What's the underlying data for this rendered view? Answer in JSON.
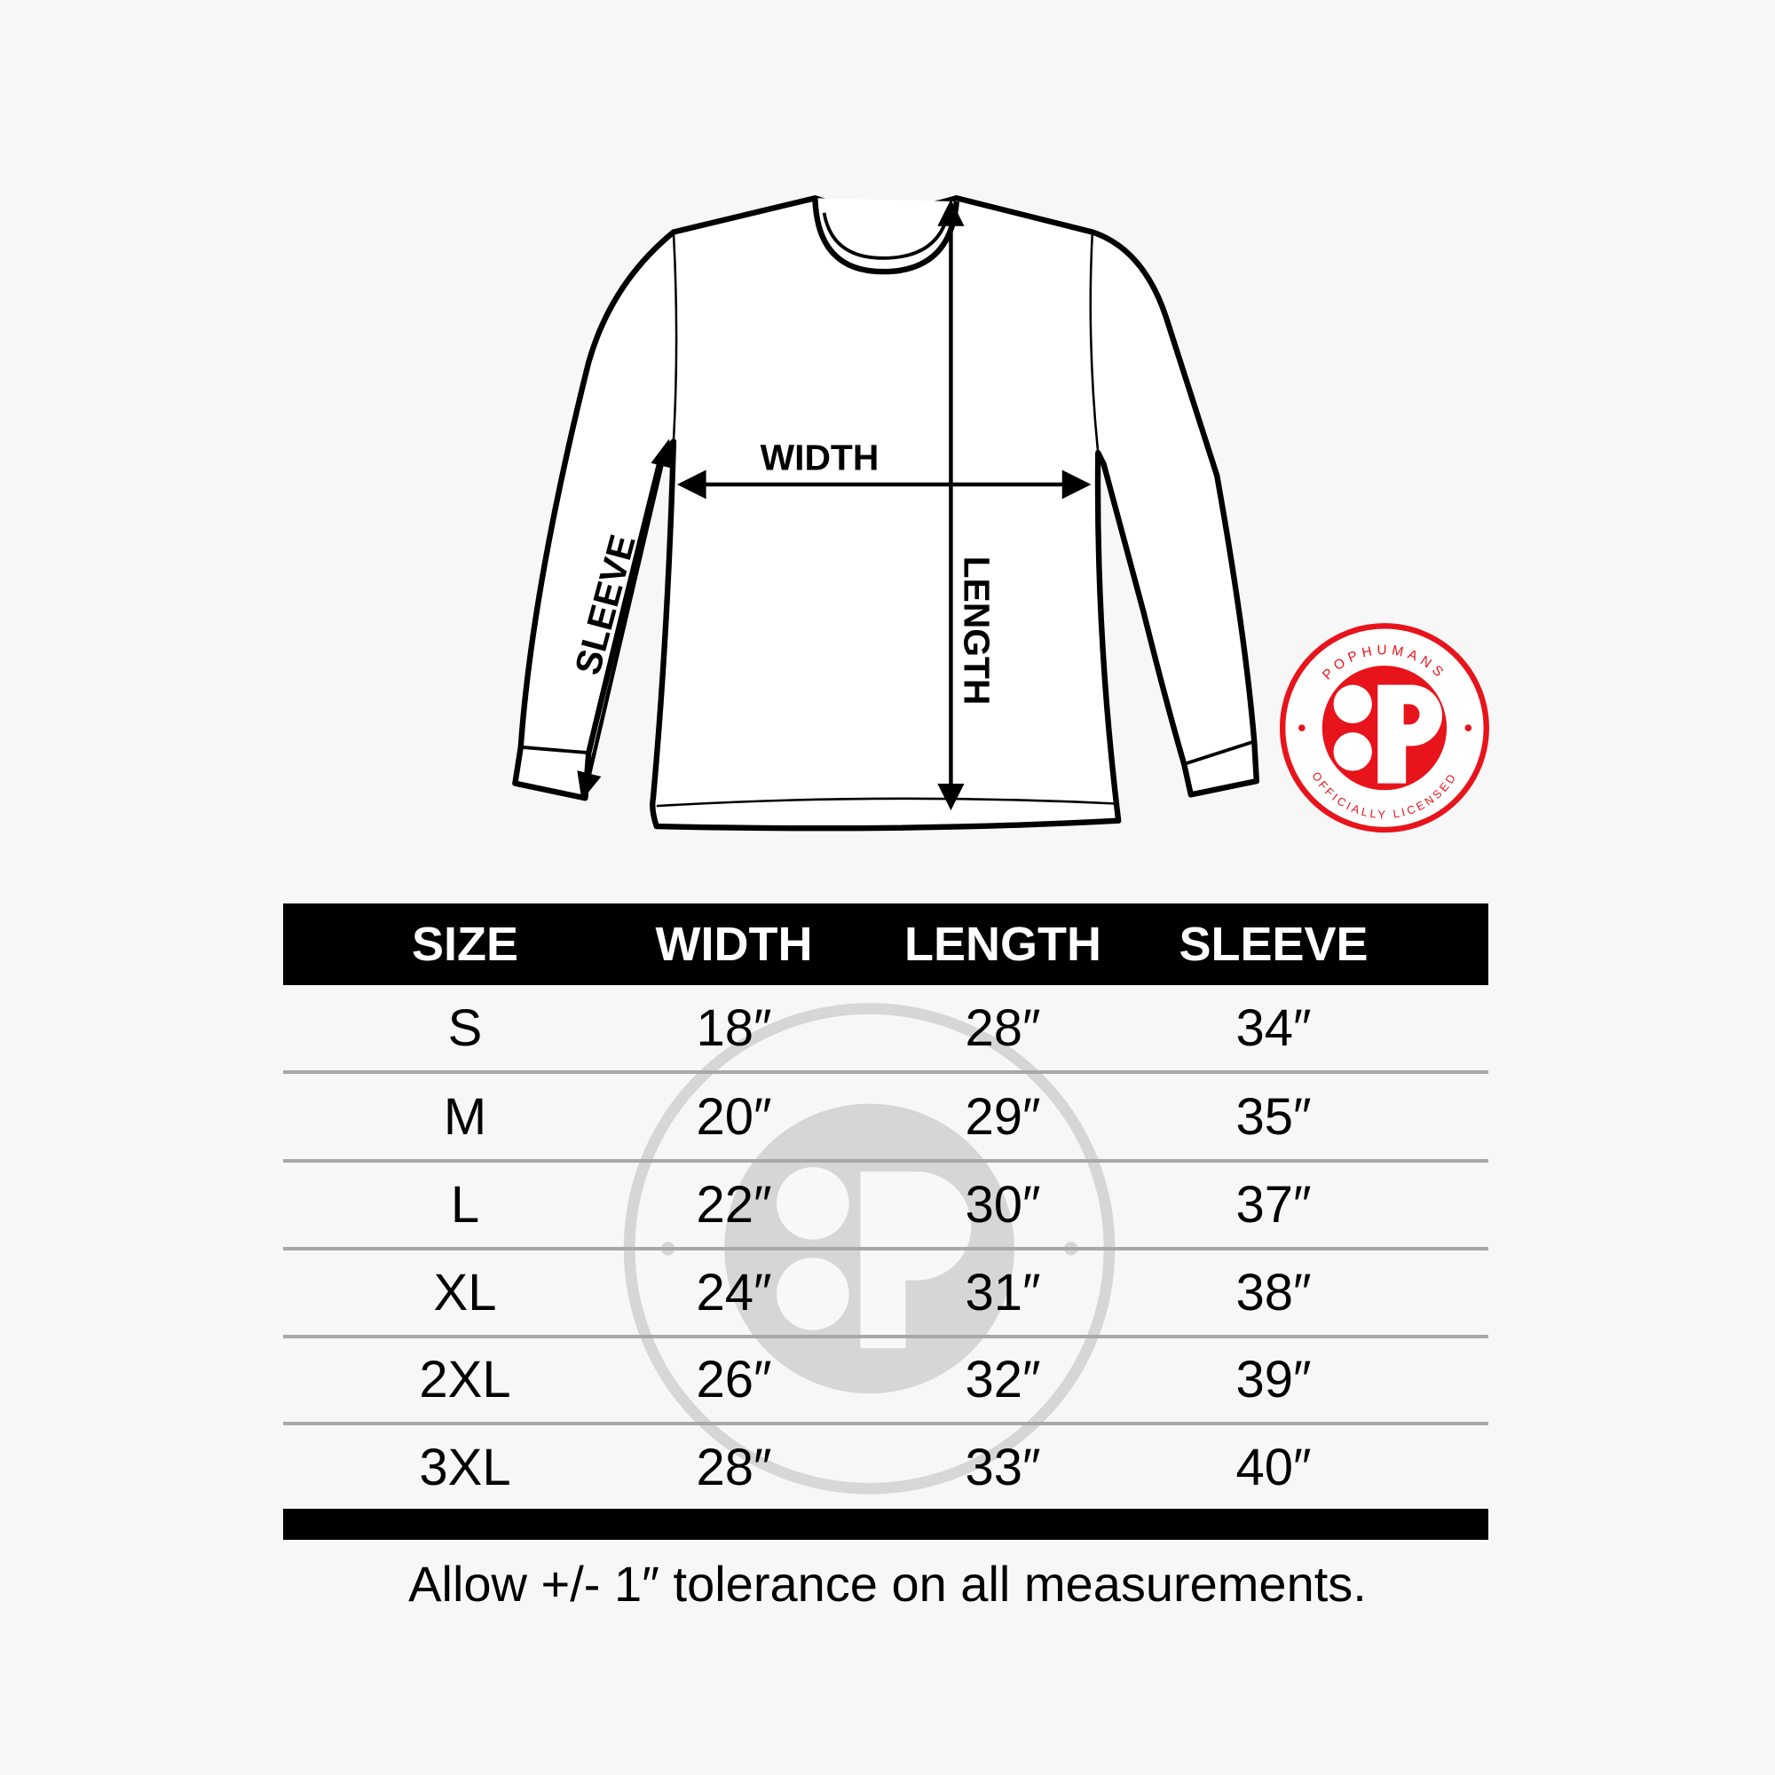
{
  "diagram": {
    "labels": {
      "width": "WIDTH",
      "length": "LENGTH",
      "sleeve": "SLEEVE"
    }
  },
  "logo": {
    "top_text": "POPHUMANS",
    "bottom_text": "OFFICIALLY LICENSED",
    "color": "#e8141b"
  },
  "table": {
    "headers": [
      "SIZE",
      "WIDTH",
      "LENGTH",
      "SLEEVE"
    ],
    "rows": [
      [
        "S",
        "18″",
        "28″",
        "34″"
      ],
      [
        "M",
        "20″",
        "29″",
        "35″"
      ],
      [
        "L",
        "22″",
        "30″",
        "37″"
      ],
      [
        "XL",
        "24″",
        "31″",
        "38″"
      ],
      [
        "2XL",
        "26″",
        "32″",
        "39″"
      ],
      [
        "3XL",
        "28″",
        "33″",
        "40″"
      ]
    ]
  },
  "note": "Allow +/- 1″ tolerance on all measurements."
}
